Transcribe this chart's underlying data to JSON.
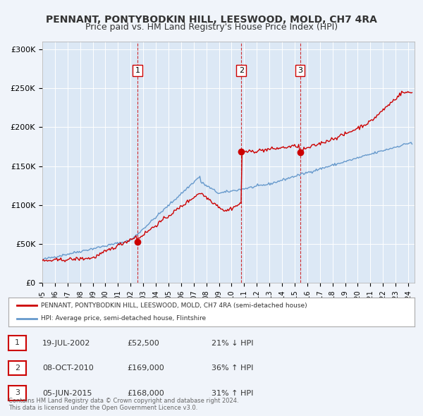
{
  "title": "PENNANT, PONTYBODKIN HILL, LEESWOOD, MOLD, CH7 4RA",
  "subtitle": "Price paid vs. HM Land Registry's House Price Index (HPI)",
  "xlabel": "",
  "ylabel": "",
  "background_color": "#f0f4fa",
  "plot_bg_color": "#dce8f5",
  "red_line_color": "#cc0000",
  "blue_line_color": "#6699cc",
  "sale_marker_color": "#cc0000",
  "dashed_line_color": "#cc0000",
  "ylim": [
    0,
    310000
  ],
  "yticks": [
    0,
    50000,
    100000,
    150000,
    200000,
    250000,
    300000
  ],
  "ytick_labels": [
    "£0",
    "£50K",
    "£100K",
    "£150K",
    "£200K",
    "£250K",
    "£300K"
  ],
  "xlim_start": 1995.0,
  "xlim_end": 2024.5,
  "sale_dates": [
    2002.54,
    2010.77,
    2015.43
  ],
  "sale_prices": [
    52500,
    169000,
    168000
  ],
  "sale_labels": [
    "1",
    "2",
    "3"
  ],
  "legend_red_label": "PENNANT, PONTYBODKIN HILL, LEESWOOD, MOLD, CH7 4RA (semi-detached house)",
  "legend_blue_label": "HPI: Average price, semi-detached house, Flintshire",
  "table_rows": [
    [
      "1",
      "19-JUL-2002",
      "£52,500",
      "21% ↓ HPI"
    ],
    [
      "2",
      "08-OCT-2010",
      "£169,000",
      "36% ↑ HPI"
    ],
    [
      "3",
      "05-JUN-2015",
      "£168,000",
      "31% ↑ HPI"
    ]
  ],
  "footer_text": "Contains HM Land Registry data © Crown copyright and database right 2024.\nThis data is licensed under the Open Government Licence v3.0.",
  "title_fontsize": 10,
  "subtitle_fontsize": 9
}
